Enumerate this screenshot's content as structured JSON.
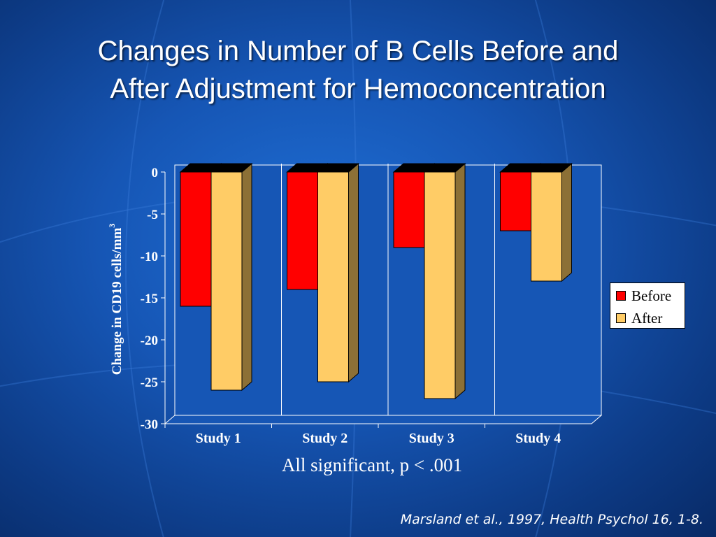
{
  "slide": {
    "title_line1": "Changes in Number of B Cells Before and",
    "title_line2": "After Adjustment for Hemoconcentration",
    "caption": "All significant, p < .001",
    "citation": "Marsland et al., 1997, Health Psychol 16, 1-8."
  },
  "chart_data": {
    "type": "bar",
    "categories": [
      "Study 1",
      "Study 2",
      "Study 3",
      "Study 4"
    ],
    "series": [
      {
        "name": "Before",
        "values": [
          -16,
          -14,
          -9,
          -7
        ],
        "color": "#ff0000"
      },
      {
        "name": "After",
        "values": [
          -26,
          -25,
          -27,
          -13
        ],
        "color": "#ffcc66"
      }
    ],
    "ylabel": "Change in CD19 cells/mm",
    "ylabel_superscript": "3",
    "ylim": [
      -30,
      0
    ],
    "yticks": [
      0,
      -5,
      -10,
      -15,
      -20,
      -25,
      -30
    ],
    "legend_position": "right",
    "three_d": true
  },
  "legend": {
    "before_label": "Before",
    "after_label": "After"
  },
  "colors": {
    "before": "#ff0000",
    "after": "#ffcc66",
    "background": "#1656b5"
  }
}
